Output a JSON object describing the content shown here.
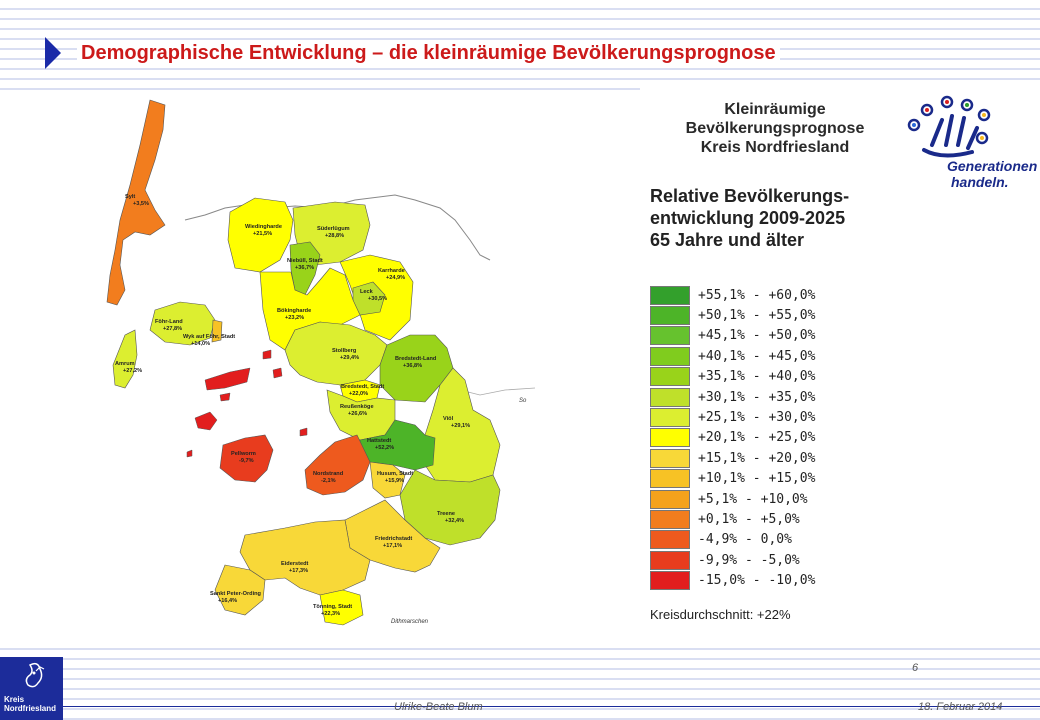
{
  "header": {
    "title": "Demographische Entwicklung – die kleinräumige Bevölkerungsprognose"
  },
  "panel": {
    "heading1_line1": "Kleinräumige",
    "heading1_line2": "Bevölkerungsprognose",
    "heading1_line3": "Kreis Nordfriesland",
    "heading2_line1": "Relative Bevölkerungs-",
    "heading2_line2": "entwicklung 2009-2025",
    "heading2_line3": "65 Jahre und älter",
    "legend": [
      {
        "label": "+55,1% - +60,0%",
        "color": "#33a02c"
      },
      {
        "label": "+50,1% - +55,0%",
        "color": "#4db428"
      },
      {
        "label": "+45,1% - +50,0%",
        "color": "#66c22e"
      },
      {
        "label": "+40,1% - +45,0%",
        "color": "#80cc1e"
      },
      {
        "label": "+35,1% - +40,0%",
        "color": "#99d31a"
      },
      {
        "label": "+30,1% - +35,0%",
        "color": "#bfe02a"
      },
      {
        "label": "+25,1% - +30,0%",
        "color": "#dcee30"
      },
      {
        "label": "+20,1% - +25,0%",
        "color": "#ffff00"
      },
      {
        "label": "+15,1% - +20,0%",
        "color": "#f8d838"
      },
      {
        "label": "+10,1% - +15,0%",
        "color": "#f7c225"
      },
      {
        "label": "+5,1%  - +10,0%",
        "color": "#f5a21c"
      },
      {
        "label": "+0,1%  - +5,0%",
        "color": "#f27d1e"
      },
      {
        "label": "-4,9%  - 0,0%",
        "color": "#ee5a1e"
      },
      {
        "label": "-9,9%  - -5,0%",
        "color": "#e83c1e"
      },
      {
        "label": "-15,0% - -10,0%",
        "color": "#e21e1e"
      }
    ],
    "average": "Kreisdurchschnitt: +22%"
  },
  "logo": {
    "line1": "Generationen",
    "line2": "handeln."
  },
  "map": {
    "regions": [
      {
        "name": "Sylt",
        "value": "+3,5%",
        "color": "#f27d1e"
      },
      {
        "name": "Föhr-Land",
        "value": "+27,8%",
        "color": "#dcee30"
      },
      {
        "name": "Wyk auf Föhr, Stadt",
        "value": "+14,0%",
        "color": "#f7c225"
      },
      {
        "name": "Amrum",
        "value": "+27,2%",
        "color": "#dcee30"
      },
      {
        "name": "Pellworm",
        "value": "-9,7%",
        "color": "#e83c1e"
      },
      {
        "name": "Wiedingharde",
        "value": "+21,5%",
        "color": "#ffff00"
      },
      {
        "name": "Süderlügum",
        "value": "+28,8%",
        "color": "#dcee30"
      },
      {
        "name": "Niebüll, Stadt",
        "value": "+36,7%",
        "color": "#99d31a"
      },
      {
        "name": "Karrharde",
        "value": "+24,9%",
        "color": "#ffff00"
      },
      {
        "name": "Leck",
        "value": "+30,5%",
        "color": "#bfe02a"
      },
      {
        "name": "Bökingharde",
        "value": "+23,2%",
        "color": "#ffff00"
      },
      {
        "name": "Stollberg",
        "value": "+29,4%",
        "color": "#dcee30"
      },
      {
        "name": "Bredstedt-Land",
        "value": "+36,8%",
        "color": "#99d31a"
      },
      {
        "name": "Bredstedt, Stadt",
        "value": "+22,0%",
        "color": "#ffff00"
      },
      {
        "name": "Reußenköge",
        "value": "+26,6%",
        "color": "#dcee30"
      },
      {
        "name": "Viöl",
        "value": "+29,1%",
        "color": "#dcee30"
      },
      {
        "name": "Hattstedt",
        "value": "+52,2%",
        "color": "#4db428"
      },
      {
        "name": "Nordstrand",
        "value": "-2,1%",
        "color": "#ee5a1e"
      },
      {
        "name": "Husum, Stadt",
        "value": "+15,9%",
        "color": "#f8d838"
      },
      {
        "name": "Treene",
        "value": "+32,4%",
        "color": "#bfe02a"
      },
      {
        "name": "Friedrichstadt",
        "value": "+17,1%",
        "color": "#f8d838"
      },
      {
        "name": "Eiderstedt",
        "value": "+17,3%",
        "color": "#f8d838"
      },
      {
        "name": "Sankt Peter-Ording",
        "value": "+16,4%",
        "color": "#f8d838"
      },
      {
        "name": "Tönning, Stadt",
        "value": "+22,3%",
        "color": "#ffff00"
      }
    ],
    "neighbours": {
      "dithmarschen": "Dithmarschen",
      "so": "So"
    }
  },
  "footer": {
    "author": "Ulrike-Beate  Blum",
    "date": "18. Februar 2014",
    "page": "6",
    "kreis_line1": "Kreis",
    "kreis_line2": "Nordfriesland"
  }
}
